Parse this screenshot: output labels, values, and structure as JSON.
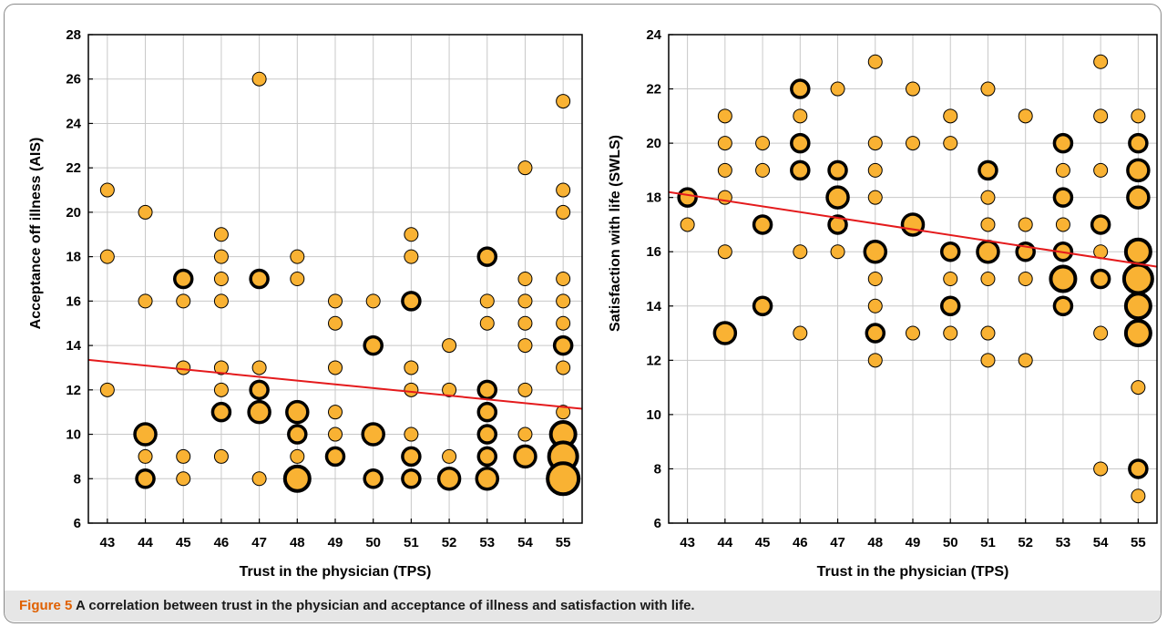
{
  "caption": {
    "label": "Figure 5",
    "text": "A correlation between trust in the physician and acceptance of illness and satisfaction with life."
  },
  "colors": {
    "marker_fill": "#F9B233",
    "marker_stroke": "#000000",
    "regression": "#E41A1C",
    "grid": "#C8C8C8"
  },
  "chart_data": [
    {
      "type": "scatter",
      "title": "",
      "xlabel": "Trust in the physician (TPS)",
      "ylabel": "Acceptance off illness (AIS)",
      "xlim": [
        42.5,
        55.5
      ],
      "ylim": [
        6,
        28
      ],
      "xticks": [
        43,
        44,
        45,
        46,
        47,
        48,
        49,
        50,
        51,
        52,
        53,
        54,
        55
      ],
      "yticks": [
        6,
        8,
        10,
        12,
        14,
        16,
        18,
        20,
        22,
        24,
        26,
        28
      ],
      "grid": true,
      "marker_size_meaning": "number of overlapping observations",
      "points": [
        {
          "x": 43,
          "y": 21,
          "n": 1
        },
        {
          "x": 43,
          "y": 18,
          "n": 1
        },
        {
          "x": 43,
          "y": 12,
          "n": 1
        },
        {
          "x": 44,
          "y": 20,
          "n": 1
        },
        {
          "x": 44,
          "y": 16,
          "n": 1
        },
        {
          "x": 44,
          "y": 10,
          "n": 3
        },
        {
          "x": 44,
          "y": 9,
          "n": 1
        },
        {
          "x": 44,
          "y": 8,
          "n": 2
        },
        {
          "x": 45,
          "y": 17,
          "n": 2
        },
        {
          "x": 45,
          "y": 16,
          "n": 1
        },
        {
          "x": 45,
          "y": 13,
          "n": 1
        },
        {
          "x": 45,
          "y": 9,
          "n": 1
        },
        {
          "x": 45,
          "y": 8,
          "n": 1
        },
        {
          "x": 46,
          "y": 19,
          "n": 1
        },
        {
          "x": 46,
          "y": 18,
          "n": 1
        },
        {
          "x": 46,
          "y": 17,
          "n": 1
        },
        {
          "x": 46,
          "y": 16,
          "n": 1
        },
        {
          "x": 46,
          "y": 13,
          "n": 1
        },
        {
          "x": 46,
          "y": 12,
          "n": 1
        },
        {
          "x": 46,
          "y": 11,
          "n": 2
        },
        {
          "x": 46,
          "y": 9,
          "n": 1
        },
        {
          "x": 47,
          "y": 26,
          "n": 1
        },
        {
          "x": 47,
          "y": 17,
          "n": 2
        },
        {
          "x": 47,
          "y": 13,
          "n": 1
        },
        {
          "x": 47,
          "y": 12,
          "n": 2
        },
        {
          "x": 47,
          "y": 11,
          "n": 3
        },
        {
          "x": 47,
          "y": 8,
          "n": 1
        },
        {
          "x": 48,
          "y": 18,
          "n": 1
        },
        {
          "x": 48,
          "y": 17,
          "n": 1
        },
        {
          "x": 48,
          "y": 11,
          "n": 3
        },
        {
          "x": 48,
          "y": 10,
          "n": 2
        },
        {
          "x": 48,
          "y": 9,
          "n": 1
        },
        {
          "x": 48,
          "y": 8,
          "n": 4
        },
        {
          "x": 49,
          "y": 16,
          "n": 1
        },
        {
          "x": 49,
          "y": 15,
          "n": 1
        },
        {
          "x": 49,
          "y": 13,
          "n": 1
        },
        {
          "x": 49,
          "y": 11,
          "n": 1
        },
        {
          "x": 49,
          "y": 10,
          "n": 1
        },
        {
          "x": 49,
          "y": 9,
          "n": 2
        },
        {
          "x": 50,
          "y": 16,
          "n": 1
        },
        {
          "x": 50,
          "y": 14,
          "n": 2
        },
        {
          "x": 50,
          "y": 10,
          "n": 3
        },
        {
          "x": 50,
          "y": 8,
          "n": 2
        },
        {
          "x": 51,
          "y": 19,
          "n": 1
        },
        {
          "x": 51,
          "y": 18,
          "n": 1
        },
        {
          "x": 51,
          "y": 16,
          "n": 2
        },
        {
          "x": 51,
          "y": 13,
          "n": 1
        },
        {
          "x": 51,
          "y": 12,
          "n": 1
        },
        {
          "x": 51,
          "y": 10,
          "n": 1
        },
        {
          "x": 51,
          "y": 9,
          "n": 2
        },
        {
          "x": 51,
          "y": 8,
          "n": 2
        },
        {
          "x": 52,
          "y": 14,
          "n": 1
        },
        {
          "x": 52,
          "y": 12,
          "n": 1
        },
        {
          "x": 52,
          "y": 9,
          "n": 1
        },
        {
          "x": 52,
          "y": 8,
          "n": 3
        },
        {
          "x": 53,
          "y": 18,
          "n": 2
        },
        {
          "x": 53,
          "y": 16,
          "n": 1
        },
        {
          "x": 53,
          "y": 15,
          "n": 1
        },
        {
          "x": 53,
          "y": 12,
          "n": 2
        },
        {
          "x": 53,
          "y": 11,
          "n": 2
        },
        {
          "x": 53,
          "y": 10,
          "n": 2
        },
        {
          "x": 53,
          "y": 9,
          "n": 2
        },
        {
          "x": 53,
          "y": 8,
          "n": 3
        },
        {
          "x": 54,
          "y": 22,
          "n": 1
        },
        {
          "x": 54,
          "y": 17,
          "n": 1
        },
        {
          "x": 54,
          "y": 16,
          "n": 1
        },
        {
          "x": 54,
          "y": 15,
          "n": 1
        },
        {
          "x": 54,
          "y": 14,
          "n": 1
        },
        {
          "x": 54,
          "y": 12,
          "n": 1
        },
        {
          "x": 54,
          "y": 10,
          "n": 1
        },
        {
          "x": 54,
          "y": 9,
          "n": 3
        },
        {
          "x": 55,
          "y": 25,
          "n": 1
        },
        {
          "x": 55,
          "y": 21,
          "n": 1
        },
        {
          "x": 55,
          "y": 20,
          "n": 1
        },
        {
          "x": 55,
          "y": 17,
          "n": 1
        },
        {
          "x": 55,
          "y": 16,
          "n": 1
        },
        {
          "x": 55,
          "y": 15,
          "n": 1
        },
        {
          "x": 55,
          "y": 14,
          "n": 2
        },
        {
          "x": 55,
          "y": 13,
          "n": 1
        },
        {
          "x": 55,
          "y": 11,
          "n": 1
        },
        {
          "x": 55,
          "y": 10,
          "n": 4
        },
        {
          "x": 55,
          "y": 9,
          "n": 5
        },
        {
          "x": 55,
          "y": 8,
          "n": 6
        }
      ],
      "regression_line": {
        "x": [
          42.5,
          55.5
        ],
        "y": [
          13.35,
          11.15
        ]
      }
    },
    {
      "type": "scatter",
      "title": "",
      "xlabel": "Trust in the physician (TPS)",
      "ylabel": "Satisfaction with life (SWLS)",
      "xlim": [
        42.5,
        55.5
      ],
      "ylim": [
        6,
        24
      ],
      "xticks": [
        43,
        44,
        45,
        46,
        47,
        48,
        49,
        50,
        51,
        52,
        53,
        54,
        55
      ],
      "yticks": [
        6,
        8,
        10,
        12,
        14,
        16,
        18,
        20,
        22,
        24
      ],
      "grid": true,
      "marker_size_meaning": "number of overlapping observations",
      "points": [
        {
          "x": 43,
          "y": 18,
          "n": 2
        },
        {
          "x": 43,
          "y": 17,
          "n": 1
        },
        {
          "x": 44,
          "y": 21,
          "n": 1
        },
        {
          "x": 44,
          "y": 20,
          "n": 1
        },
        {
          "x": 44,
          "y": 19,
          "n": 1
        },
        {
          "x": 44,
          "y": 18,
          "n": 1
        },
        {
          "x": 44,
          "y": 16,
          "n": 1
        },
        {
          "x": 44,
          "y": 13,
          "n": 3
        },
        {
          "x": 45,
          "y": 20,
          "n": 1
        },
        {
          "x": 45,
          "y": 19,
          "n": 1
        },
        {
          "x": 45,
          "y": 17,
          "n": 2
        },
        {
          "x": 45,
          "y": 14,
          "n": 2
        },
        {
          "x": 46,
          "y": 22,
          "n": 2
        },
        {
          "x": 46,
          "y": 21,
          "n": 1
        },
        {
          "x": 46,
          "y": 20,
          "n": 2
        },
        {
          "x": 46,
          "y": 19,
          "n": 2
        },
        {
          "x": 46,
          "y": 16,
          "n": 1
        },
        {
          "x": 46,
          "y": 13,
          "n": 1
        },
        {
          "x": 47,
          "y": 22,
          "n": 1
        },
        {
          "x": 47,
          "y": 19,
          "n": 2
        },
        {
          "x": 47,
          "y": 18,
          "n": 3
        },
        {
          "x": 47,
          "y": 17,
          "n": 2
        },
        {
          "x": 47,
          "y": 16,
          "n": 1
        },
        {
          "x": 48,
          "y": 23,
          "n": 1
        },
        {
          "x": 48,
          "y": 20,
          "n": 1
        },
        {
          "x": 48,
          "y": 19,
          "n": 1
        },
        {
          "x": 48,
          "y": 18,
          "n": 1
        },
        {
          "x": 48,
          "y": 16,
          "n": 3
        },
        {
          "x": 48,
          "y": 15,
          "n": 1
        },
        {
          "x": 48,
          "y": 14,
          "n": 1
        },
        {
          "x": 48,
          "y": 13,
          "n": 2
        },
        {
          "x": 48,
          "y": 12,
          "n": 1
        },
        {
          "x": 49,
          "y": 22,
          "n": 1
        },
        {
          "x": 49,
          "y": 20,
          "n": 1
        },
        {
          "x": 49,
          "y": 17,
          "n": 3
        },
        {
          "x": 49,
          "y": 13,
          "n": 1
        },
        {
          "x": 50,
          "y": 21,
          "n": 1
        },
        {
          "x": 50,
          "y": 20,
          "n": 1
        },
        {
          "x": 50,
          "y": 16,
          "n": 2
        },
        {
          "x": 50,
          "y": 15,
          "n": 1
        },
        {
          "x": 50,
          "y": 14,
          "n": 2
        },
        {
          "x": 50,
          "y": 13,
          "n": 1
        },
        {
          "x": 51,
          "y": 22,
          "n": 1
        },
        {
          "x": 51,
          "y": 19,
          "n": 2
        },
        {
          "x": 51,
          "y": 18,
          "n": 1
        },
        {
          "x": 51,
          "y": 17,
          "n": 1
        },
        {
          "x": 51,
          "y": 16,
          "n": 3
        },
        {
          "x": 51,
          "y": 15,
          "n": 1
        },
        {
          "x": 51,
          "y": 13,
          "n": 1
        },
        {
          "x": 51,
          "y": 12,
          "n": 1
        },
        {
          "x": 52,
          "y": 21,
          "n": 1
        },
        {
          "x": 52,
          "y": 17,
          "n": 1
        },
        {
          "x": 52,
          "y": 16,
          "n": 2
        },
        {
          "x": 52,
          "y": 15,
          "n": 1
        },
        {
          "x": 52,
          "y": 12,
          "n": 1
        },
        {
          "x": 53,
          "y": 20,
          "n": 2
        },
        {
          "x": 53,
          "y": 19,
          "n": 1
        },
        {
          "x": 53,
          "y": 18,
          "n": 2
        },
        {
          "x": 53,
          "y": 17,
          "n": 1
        },
        {
          "x": 53,
          "y": 16,
          "n": 2
        },
        {
          "x": 53,
          "y": 15,
          "n": 4
        },
        {
          "x": 53,
          "y": 14,
          "n": 2
        },
        {
          "x": 54,
          "y": 23,
          "n": 1
        },
        {
          "x": 54,
          "y": 21,
          "n": 1
        },
        {
          "x": 54,
          "y": 19,
          "n": 1
        },
        {
          "x": 54,
          "y": 17,
          "n": 2
        },
        {
          "x": 54,
          "y": 16,
          "n": 1
        },
        {
          "x": 54,
          "y": 15,
          "n": 2
        },
        {
          "x": 54,
          "y": 13,
          "n": 1
        },
        {
          "x": 54,
          "y": 8,
          "n": 1
        },
        {
          "x": 55,
          "y": 21,
          "n": 1
        },
        {
          "x": 55,
          "y": 20,
          "n": 2
        },
        {
          "x": 55,
          "y": 19,
          "n": 3
        },
        {
          "x": 55,
          "y": 18,
          "n": 3
        },
        {
          "x": 55,
          "y": 16,
          "n": 4
        },
        {
          "x": 55,
          "y": 15,
          "n": 5
        },
        {
          "x": 55,
          "y": 14,
          "n": 4
        },
        {
          "x": 55,
          "y": 13,
          "n": 4
        },
        {
          "x": 55,
          "y": 11,
          "n": 1
        },
        {
          "x": 55,
          "y": 8,
          "n": 2
        },
        {
          "x": 55,
          "y": 7,
          "n": 1
        }
      ],
      "regression_line": {
        "x": [
          42.5,
          55.5
        ],
        "y": [
          18.2,
          15.45
        ]
      }
    }
  ]
}
